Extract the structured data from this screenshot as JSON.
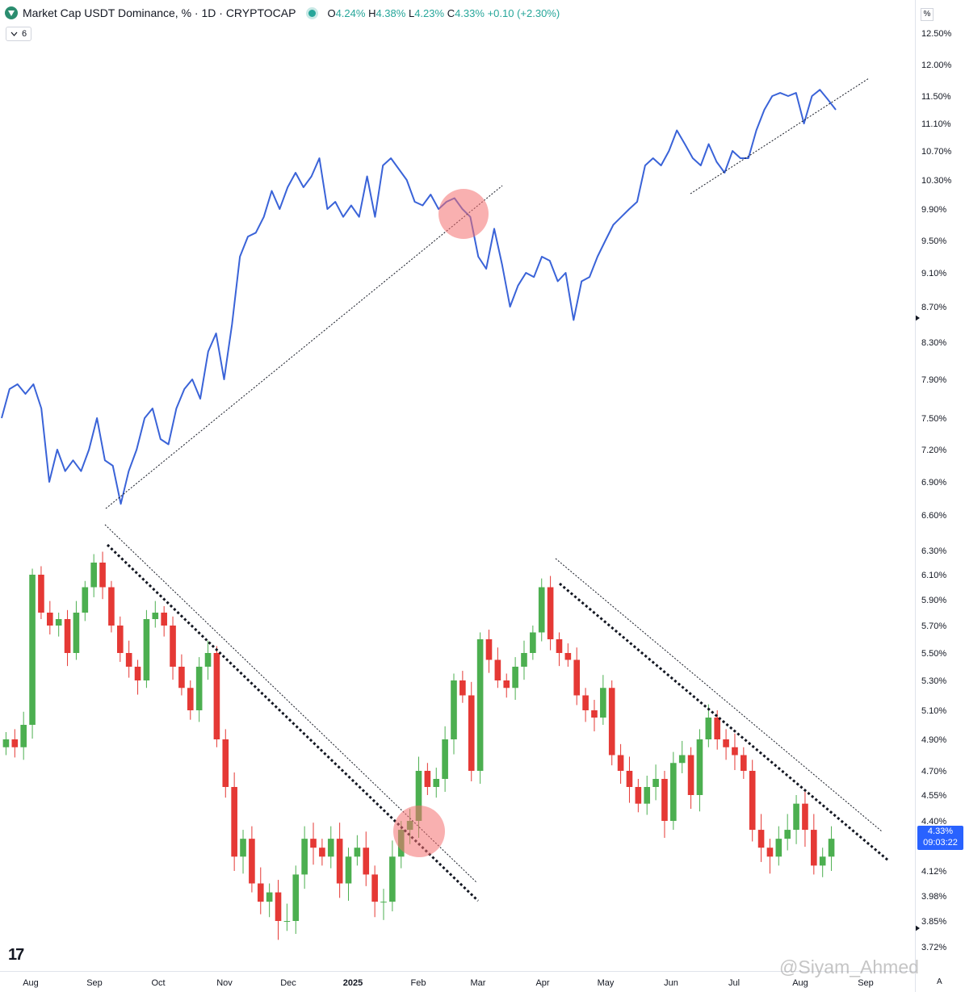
{
  "header": {
    "title": "Market Cap USDT Dominance, % · 1D · CRYPTOCAP",
    "open_label": "O",
    "open": "4.24%",
    "high_label": "H",
    "high": "4.38%",
    "low_label": "L",
    "low": "4.23%",
    "close_label": "C",
    "close": "4.33%",
    "change": "+0.10 (+2.30%)",
    "indicator_count": "6",
    "percent_label": "%"
  },
  "price_badge": {
    "value": "4.33%",
    "countdown": "09:03:22"
  },
  "watermark": "@Siyam_Ahmed",
  "auto_label": "A",
  "colors": {
    "up": "#26a69a",
    "up_candle": "#4caf50",
    "down": "#e53935",
    "line": "#3a63d8",
    "badge": "#2962ff",
    "circle": "rgba(244,112,112,0.55)"
  },
  "chart_data": [
    {
      "type": "line",
      "series": [
        {
          "values": [
            7.5,
            7.8,
            7.85,
            7.75,
            7.85,
            7.6,
            6.9,
            7.2,
            7.0,
            7.1,
            7.0,
            7.2,
            7.5,
            7.1,
            7.05,
            6.7,
            7.0,
            7.2,
            7.5,
            7.6,
            7.3,
            7.25,
            7.6,
            7.8,
            7.9,
            7.7,
            8.2,
            8.4,
            7.9,
            8.5,
            9.3,
            9.55,
            9.6,
            9.8,
            10.15,
            9.9,
            10.2,
            10.4,
            10.2,
            10.35,
            10.6,
            9.9,
            10.0,
            9.8,
            9.95,
            9.8,
            10.35,
            9.8,
            10.5,
            10.6,
            10.45,
            10.3,
            10.0,
            9.95,
            10.1,
            9.9,
            10.0,
            10.05,
            9.9,
            9.8,
            9.3,
            9.15,
            9.65,
            9.2,
            8.7,
            8.95,
            9.1,
            9.05,
            9.3,
            9.25,
            9.0,
            9.1,
            8.55,
            9.0,
            9.05,
            9.3,
            9.5,
            9.7,
            9.8,
            9.9,
            10.0,
            10.5,
            10.6,
            10.5,
            10.7,
            11.0,
            10.8,
            10.6,
            10.5,
            10.8,
            10.55,
            10.4,
            10.7,
            10.6,
            10.6,
            11.0,
            11.3,
            11.5,
            11.55,
            11.5,
            11.55,
            11.1,
            11.5,
            11.6,
            11.45,
            11.3
          ],
          "x_range": [
            "Aug 2024",
            "Aug 2025"
          ]
        }
      ],
      "trendlines": [
        "rising support (Sep 2024 - Feb 2025, broken in Feb 2025)",
        "rising support (Jun 2025 - Aug 2025)"
      ]
    },
    {
      "type": "candlestick",
      "series": [
        {
          "closes": [
            4.9,
            4.85,
            5.0,
            6.1,
            5.8,
            5.7,
            5.75,
            5.5,
            5.8,
            6.0,
            6.2,
            6.0,
            5.7,
            5.5,
            5.4,
            5.3,
            5.75,
            5.8,
            5.7,
            5.4,
            5.25,
            5.1,
            5.4,
            5.5,
            4.9,
            4.6,
            4.2,
            4.3,
            4.05,
            3.95,
            4.0,
            3.85,
            3.85,
            4.1,
            4.3,
            4.25,
            4.2,
            4.3,
            4.05,
            4.2,
            4.25,
            4.1,
            3.95,
            3.95,
            4.2,
            4.35,
            4.4,
            4.7,
            4.6,
            4.65,
            4.9,
            5.3,
            5.2,
            4.7,
            5.6,
            5.45,
            5.3,
            5.25,
            5.4,
            5.5,
            5.65,
            6.0,
            5.6,
            5.5,
            5.45,
            5.2,
            5.1,
            5.05,
            5.25,
            4.8,
            4.7,
            4.6,
            4.5,
            4.6,
            4.65,
            4.4,
            4.75,
            4.8,
            4.55,
            4.9,
            5.05,
            4.9,
            4.85,
            4.8,
            4.7,
            4.35,
            4.25,
            4.2,
            4.3,
            4.35,
            4.5,
            4.35,
            4.15,
            4.2,
            4.3
          ],
          "open": 4.24,
          "high": 4.38,
          "low": 4.23,
          "close": 4.33
        }
      ],
      "trendlines": [
        "falling resistance (Sep 2024 - Jan 2025, broken late Jan 2025)",
        "falling resistance (Apr 2025 - Aug 2025)"
      ]
    }
  ],
  "y_axis": {
    "ticks": [
      "12.50%",
      "12.00%",
      "11.50%",
      "11.10%",
      "10.70%",
      "10.30%",
      "9.90%",
      "9.50%",
      "9.10%",
      "8.70%",
      "8.30%",
      "7.90%",
      "7.50%",
      "7.20%",
      "6.90%",
      "6.60%",
      "6.30%",
      "6.10%",
      "5.90%",
      "5.70%",
      "5.50%",
      "5.30%",
      "5.10%",
      "4.90%",
      "4.70%",
      "4.55%",
      "4.40%",
      "4.12%",
      "3.98%",
      "3.85%",
      "3.72%"
    ]
  },
  "x_axis": {
    "ticks": [
      "Aug",
      "Sep",
      "Oct",
      "Nov",
      "Dec",
      "2025",
      "Feb",
      "Mar",
      "Apr",
      "May",
      "Jun",
      "Jul",
      "Aug",
      "Sep"
    ]
  }
}
